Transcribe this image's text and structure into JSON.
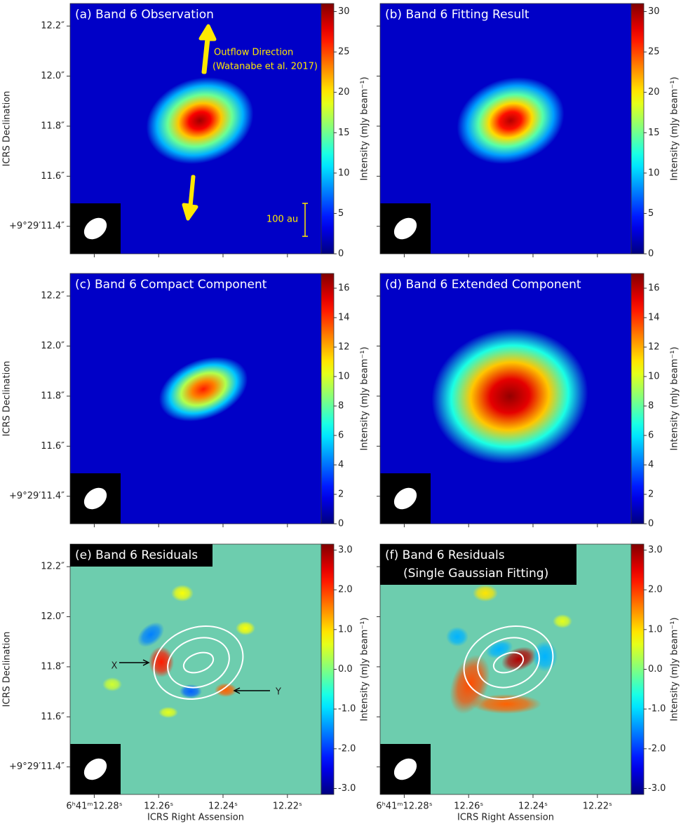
{
  "chart_data": [
    {
      "type": "image",
      "title": "(a) Band 6 Observation",
      "ylabel": "ICRS Declination",
      "ylim": [
        11.29,
        12.29
      ],
      "yticks": [
        {
          "value": 11.4,
          "label": "+9°29′11.4″"
        },
        {
          "value": 11.6,
          "label": "11.6″"
        },
        {
          "value": 11.8,
          "label": "11.8″"
        },
        {
          "value": 12.0,
          "label": "12.0″"
        },
        {
          "value": 12.2,
          "label": "12.2″"
        }
      ],
      "colormap": "jet",
      "clabel": "Intensity (mJy beam⁻¹)",
      "clim": [
        0,
        31
      ],
      "cticks": [
        0,
        5,
        10,
        15,
        20,
        25,
        30
      ],
      "annotations": [
        "Outflow Direction",
        "(Watanabe et al. 2017)",
        "100 au"
      ]
    },
    {
      "type": "image",
      "title": "(b) Band 6 Fitting Result",
      "colormap": "jet",
      "clabel": "Intensity (mJy beam⁻¹)",
      "clim": [
        0,
        31
      ],
      "cticks": [
        0,
        5,
        10,
        15,
        20,
        25,
        30
      ]
    },
    {
      "type": "image",
      "title": "(c) Band 6 Compact Component",
      "ylabel": "ICRS Declination",
      "ylim": [
        11.29,
        12.29
      ],
      "yticks": [
        {
          "value": 11.4,
          "label": "+9°29′11.4″"
        },
        {
          "value": 11.6,
          "label": "11.6″"
        },
        {
          "value": 11.8,
          "label": "11.8″"
        },
        {
          "value": 12.0,
          "label": "12.0″"
        },
        {
          "value": 12.2,
          "label": "12.2″"
        }
      ],
      "colormap": "jet",
      "clabel": "Intensity (mJy beam⁻¹)",
      "clim": [
        0,
        17
      ],
      "cticks": [
        0,
        2,
        4,
        6,
        8,
        10,
        12,
        14,
        16
      ]
    },
    {
      "type": "image",
      "title": "(d) Band 6 Extended Component",
      "colormap": "jet",
      "clabel": "Intensity (mJy beam⁻¹)",
      "clim": [
        0,
        17
      ],
      "cticks": [
        0,
        2,
        4,
        6,
        8,
        10,
        12,
        14,
        16
      ]
    },
    {
      "type": "image",
      "title": "(e) Band 6 Residuals",
      "ylabel": "ICRS Declination",
      "xlabel": "ICRS Right Assension",
      "ylim": [
        11.29,
        12.29
      ],
      "yticks": [
        {
          "value": 11.4,
          "label": "+9°29′11.4″"
        },
        {
          "value": 11.6,
          "label": "11.6″"
        },
        {
          "value": 11.8,
          "label": "11.8″"
        },
        {
          "value": 12.0,
          "label": "12.0″"
        },
        {
          "value": 12.2,
          "label": "12.2″"
        }
      ],
      "xlim": [
        12.2875,
        12.2095
      ],
      "xticks": [
        {
          "value": 12.28,
          "label": "6ʰ41ᵐ12.28ˢ"
        },
        {
          "value": 12.26,
          "label": "12.26ˢ"
        },
        {
          "value": 12.24,
          "label": "12.24ˢ"
        },
        {
          "value": 12.22,
          "label": "12.22ˢ"
        }
      ],
      "colormap": "jet",
      "clabel": "Intensity (mJy beam⁻¹)",
      "clim": [
        -3.15,
        3.15
      ],
      "cticks": [
        {
          "value": -3,
          "label": "-3.0"
        },
        {
          "value": -2,
          "label": "-2.0"
        },
        {
          "value": -1,
          "label": "-1.0"
        },
        {
          "value": 0,
          "label": "0.0"
        },
        {
          "value": 1,
          "label": "1.0"
        },
        {
          "value": 2,
          "label": "2.0"
        },
        {
          "value": 3,
          "label": "3.0"
        }
      ],
      "annotations": [
        "X",
        "Y"
      ]
    },
    {
      "type": "image",
      "title": "(f) Band 6 Residuals",
      "subtitle": "(Single Gaussian Fitting)",
      "xlabel": "ICRS Right Assension",
      "xlim": [
        12.2875,
        12.2095
      ],
      "xticks": [
        {
          "value": 12.28,
          "label": "6ʰ41ᵐ12.28ˢ"
        },
        {
          "value": 12.26,
          "label": "12.26ˢ"
        },
        {
          "value": 12.24,
          "label": "12.24ˢ"
        },
        {
          "value": 12.22,
          "label": "12.22ˢ"
        }
      ],
      "colormap": "jet",
      "clabel": "Intensity (mJy beam⁻¹)",
      "clim": [
        -3.15,
        3.15
      ],
      "cticks": [
        {
          "value": -3,
          "label": "-3.0"
        },
        {
          "value": -2,
          "label": "-2.0"
        },
        {
          "value": -1,
          "label": "-1.0"
        },
        {
          "value": 0,
          "label": "0.0"
        },
        {
          "value": 1,
          "label": "1.0"
        },
        {
          "value": 2,
          "label": "2.0"
        },
        {
          "value": 3,
          "label": "3.0"
        }
      ]
    }
  ]
}
